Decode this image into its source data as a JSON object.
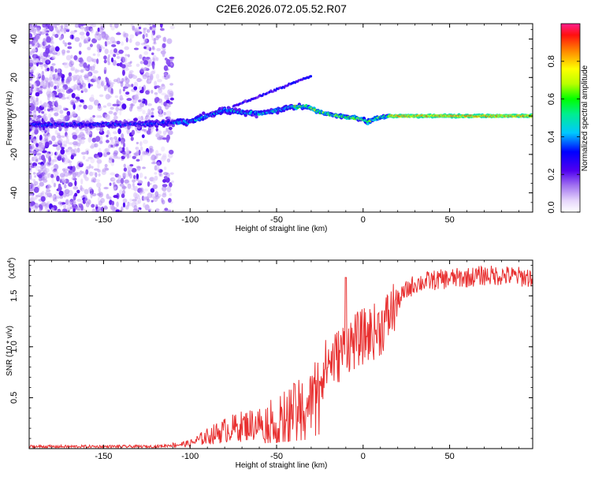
{
  "chart_data": [
    {
      "type": "heatmap",
      "title": "C2E6.2026.072.05.52.R07",
      "xlabel": "Height of straight line (km)",
      "ylabel": "Frequency (Hz)",
      "xlim": [
        -193,
        98
      ],
      "ylim": [
        -50,
        48
      ],
      "xticks": [
        -150,
        -100,
        -50,
        0,
        50
      ],
      "xtick_labels": [
        "-150",
        "-100",
        "-50",
        "0",
        "50"
      ],
      "yticks": [
        -40,
        -20,
        0,
        20,
        40
      ],
      "ytick_labels": [
        "-40",
        "-20",
        "0",
        "20",
        "40"
      ],
      "ridge": {
        "x": [
          -193,
          -150,
          -120,
          -100,
          -90,
          -80,
          -70,
          -60,
          -50,
          -40,
          -33,
          -25,
          -15,
          -5,
          0,
          3,
          8,
          15,
          30,
          60,
          98
        ],
        "y": [
          -4.5,
          -4.5,
          -4,
          -3,
          0,
          3,
          2,
          1,
          3,
          5,
          5,
          2,
          0,
          -1,
          -2,
          -3,
          -1,
          0,
          0,
          0,
          0
        ]
      },
      "colorbar": {
        "label": "Normalized spectral amplitude",
        "range": [
          0,
          1
        ],
        "ticks": [
          0.0,
          0.2,
          0.4,
          0.6,
          0.8
        ],
        "tick_labels": [
          "0.0",
          "0.2",
          "0.4",
          "0.6",
          "0.8"
        ]
      }
    },
    {
      "type": "line",
      "xlabel": "Height of straight line (km)",
      "ylabel": "SNR (10 * v/v)",
      "exponent_label": "(x10",
      "exponent_power": "4",
      "exponent_close": ")",
      "xlim": [
        -193,
        98
      ],
      "ylim": [
        0,
        1.85
      ],
      "xticks": [
        -150,
        -100,
        -50,
        0,
        50
      ],
      "xtick_labels": [
        "-150",
        "-100",
        "-50",
        "0",
        "50"
      ],
      "yticks": [
        0.5,
        1.0,
        1.5
      ],
      "ytick_labels": [
        "0.5",
        "1.0",
        "1.5"
      ],
      "color": "#e83030",
      "series": [
        {
          "name": "SNR",
          "x": [
            -193,
            -120,
            -100,
            -90,
            -80,
            -70,
            -60,
            -50,
            -40,
            -30,
            -28,
            -20,
            -15,
            -10,
            0,
            10,
            15,
            20,
            25,
            30,
            40,
            50,
            60,
            70,
            80,
            98
          ],
          "y": [
            0.02,
            0.02,
            0.05,
            0.12,
            0.18,
            0.22,
            0.25,
            0.3,
            0.38,
            0.45,
            0.62,
            0.85,
            0.9,
            1.0,
            1.1,
            1.18,
            1.3,
            1.45,
            1.55,
            1.62,
            1.65,
            1.67,
            1.68,
            1.7,
            1.7,
            1.68
          ]
        }
      ]
    }
  ]
}
